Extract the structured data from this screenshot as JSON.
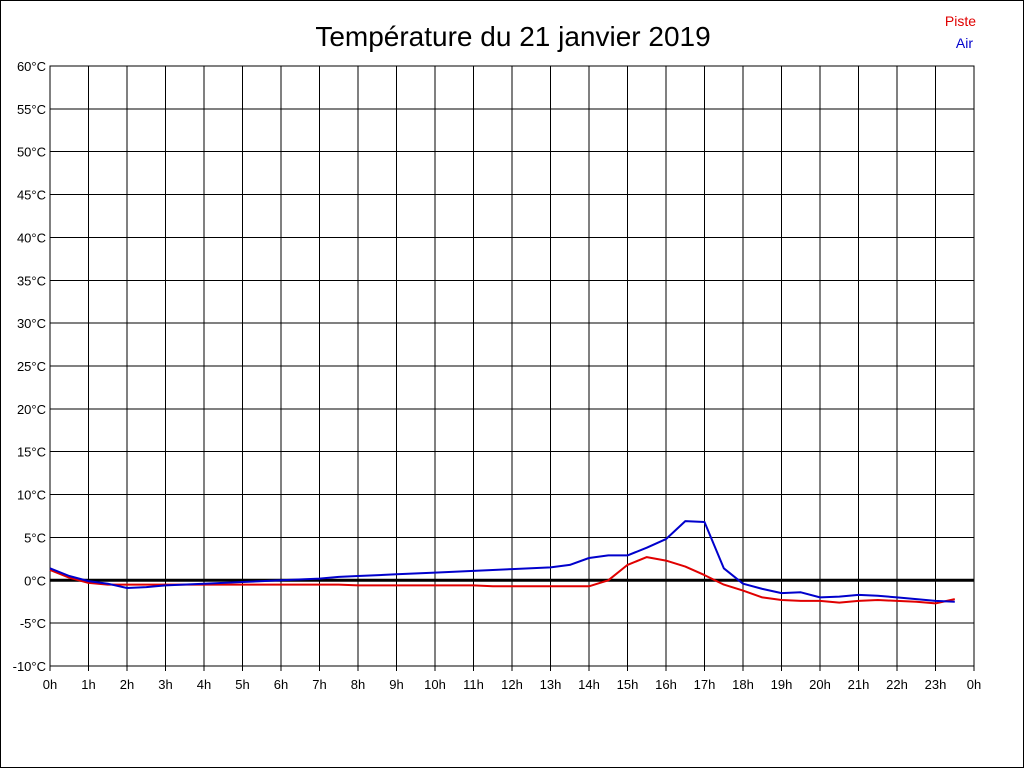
{
  "chart_data": {
    "type": "line",
    "title": "Température du 21 janvier 2019",
    "xlabel": "",
    "ylabel": "",
    "x_ticks": [
      "0h",
      "1h",
      "2h",
      "3h",
      "4h",
      "5h",
      "6h",
      "7h",
      "8h",
      "9h",
      "10h",
      "11h",
      "12h",
      "13h",
      "14h",
      "15h",
      "16h",
      "17h",
      "18h",
      "19h",
      "20h",
      "21h",
      "22h",
      "23h",
      "0h"
    ],
    "y_ticks": [
      "-10°C",
      "-5°C",
      "0°C",
      "5°C",
      "10°C",
      "15°C",
      "20°C",
      "25°C",
      "30°C",
      "35°C",
      "40°C",
      "45°C",
      "50°C",
      "55°C",
      "60°C"
    ],
    "xlim": [
      0,
      24
    ],
    "ylim": [
      -10,
      60
    ],
    "y_step": 5,
    "grid": true,
    "legend_position": "top-right",
    "zero_line": true,
    "series": [
      {
        "name": "Piste",
        "color": "#e00000",
        "x": [
          0,
          0.5,
          1,
          1.5,
          2,
          2.5,
          3,
          4,
          5,
          6,
          7,
          7.5,
          8,
          9,
          10,
          11,
          11.5,
          12,
          13,
          14,
          14.5,
          15,
          15.5,
          16,
          16.5,
          17,
          17.5,
          18,
          18.5,
          19,
          19.5,
          20,
          20.5,
          21,
          21.5,
          22,
          22.5,
          23,
          23.5
        ],
        "y": [
          1.2,
          0.3,
          -0.3,
          -0.5,
          -0.5,
          -0.5,
          -0.5,
          -0.5,
          -0.5,
          -0.5,
          -0.5,
          -0.5,
          -0.6,
          -0.6,
          -0.6,
          -0.6,
          -0.7,
          -0.7,
          -0.7,
          -0.7,
          0,
          1.8,
          2.7,
          2.3,
          1.6,
          0.6,
          -0.5,
          -1.2,
          -2,
          -2.3,
          -2.4,
          -2.4,
          -2.6,
          -2.4,
          -2.3,
          -2.4,
          -2.5,
          -2.7,
          -2.2
        ]
      },
      {
        "name": "Air",
        "color": "#0000cc",
        "x": [
          0,
          0.5,
          1,
          1.5,
          2,
          2.5,
          3,
          4,
          5,
          6,
          7,
          7.5,
          8,
          9,
          10,
          11,
          11.5,
          12,
          13,
          13.5,
          14,
          14.5,
          15,
          15.5,
          16,
          16.5,
          17,
          17.5,
          18,
          18.5,
          19,
          19.5,
          20,
          20.5,
          21,
          21.5,
          22,
          22.5,
          23,
          23.5
        ],
        "y": [
          1.4,
          0.5,
          -0.1,
          -0.4,
          -0.9,
          -0.8,
          -0.6,
          -0.4,
          -0.2,
          0,
          0.2,
          0.4,
          0.5,
          0.7,
          0.9,
          1.1,
          1.2,
          1.3,
          1.5,
          1.8,
          2.6,
          2.9,
          2.9,
          3.8,
          4.8,
          6.9,
          6.8,
          1.4,
          -0.4,
          -1,
          -1.5,
          -1.4,
          -2,
          -1.9,
          -1.7,
          -1.8,
          -2,
          -2.2,
          -2.4,
          -2.5
        ]
      }
    ]
  }
}
